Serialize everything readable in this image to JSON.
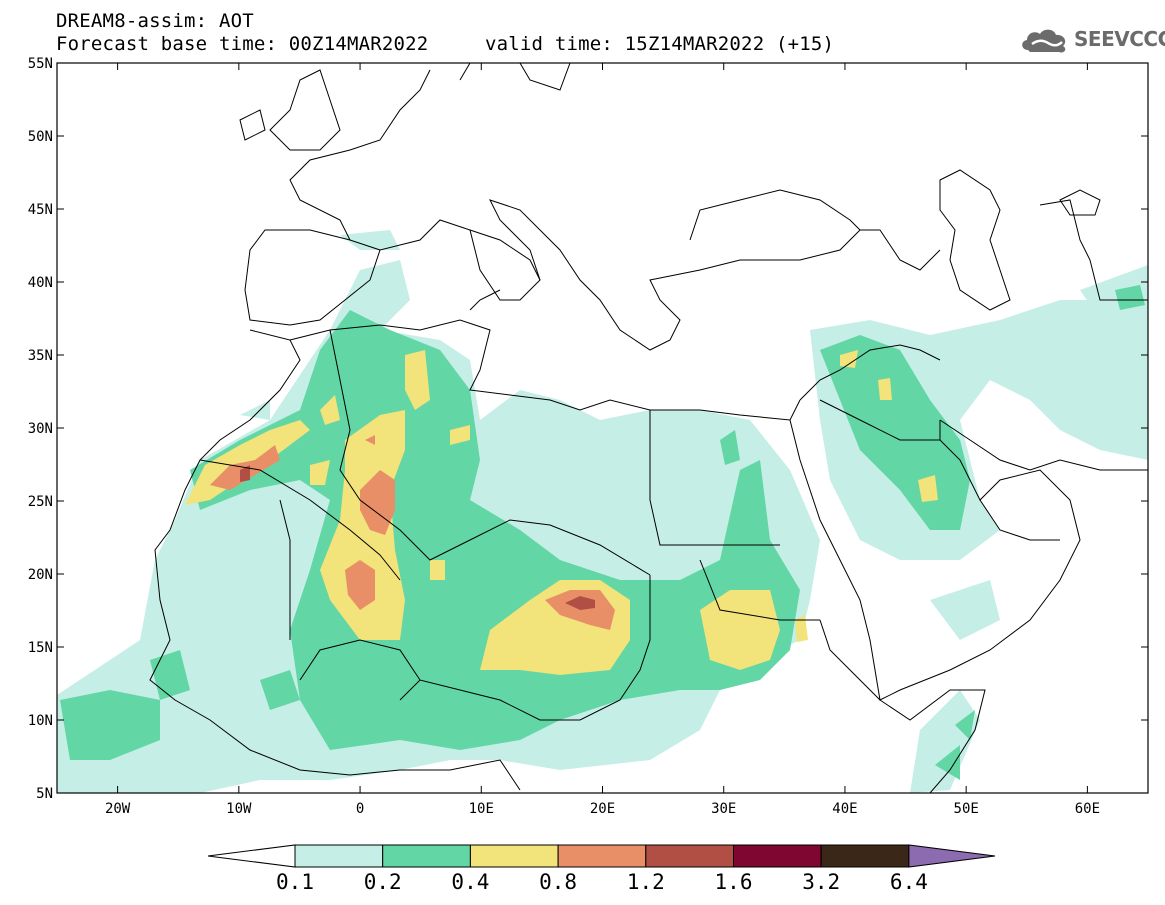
{
  "header": {
    "line1": "DREAM8-assim: AOT",
    "base_time": "Forecast base time: 00Z14MAR2022",
    "valid_time": "valid time: 15Z14MAR2022 (+15)"
  },
  "logo": {
    "text": "SEEVCCC",
    "icon": "cloud-icon"
  },
  "map": {
    "lon_ticks": [
      {
        "lon": -20,
        "label": "20W"
      },
      {
        "lon": -10,
        "label": "10W"
      },
      {
        "lon": 0,
        "label": "0"
      },
      {
        "lon": 10,
        "label": "10E"
      },
      {
        "lon": 20,
        "label": "20E"
      },
      {
        "lon": 30,
        "label": "30E"
      },
      {
        "lon": 40,
        "label": "40E"
      },
      {
        "lon": 50,
        "label": "50E"
      },
      {
        "lon": 60,
        "label": "60E"
      }
    ],
    "lat_ticks": [
      {
        "lat": 55,
        "label": "55N"
      },
      {
        "lat": 50,
        "label": "50N"
      },
      {
        "lat": 45,
        "label": "45N"
      },
      {
        "lat": 40,
        "label": "40N"
      },
      {
        "lat": 35,
        "label": "35N"
      },
      {
        "lat": 30,
        "label": "30N"
      },
      {
        "lat": 25,
        "label": "25N"
      },
      {
        "lat": 20,
        "label": "20N"
      },
      {
        "lat": 15,
        "label": "15N"
      },
      {
        "lat": 10,
        "label": "10N"
      },
      {
        "lat": 5,
        "label": "5N"
      }
    ],
    "lon_range": [
      -25,
      65
    ],
    "lat_range": [
      5,
      55
    ]
  },
  "colorbar": {
    "levels": [
      "0.1",
      "0.2",
      "0.4",
      "0.8",
      "1.2",
      "1.6",
      "3.2",
      "6.4"
    ],
    "colors": [
      "#ffffff",
      "#c4eee6",
      "#62d6a4",
      "#f2e37a",
      "#e88f68",
      "#b24f44",
      "#7e0630",
      "#3b2717",
      "#8c6bb1"
    ]
  },
  "colors": {
    "lvl1": "#c4eee6",
    "lvl2": "#62d6a4",
    "lvl3": "#f2e37a",
    "lvl4": "#e88f68",
    "lvl5": "#b24f44",
    "border": "#000000"
  }
}
